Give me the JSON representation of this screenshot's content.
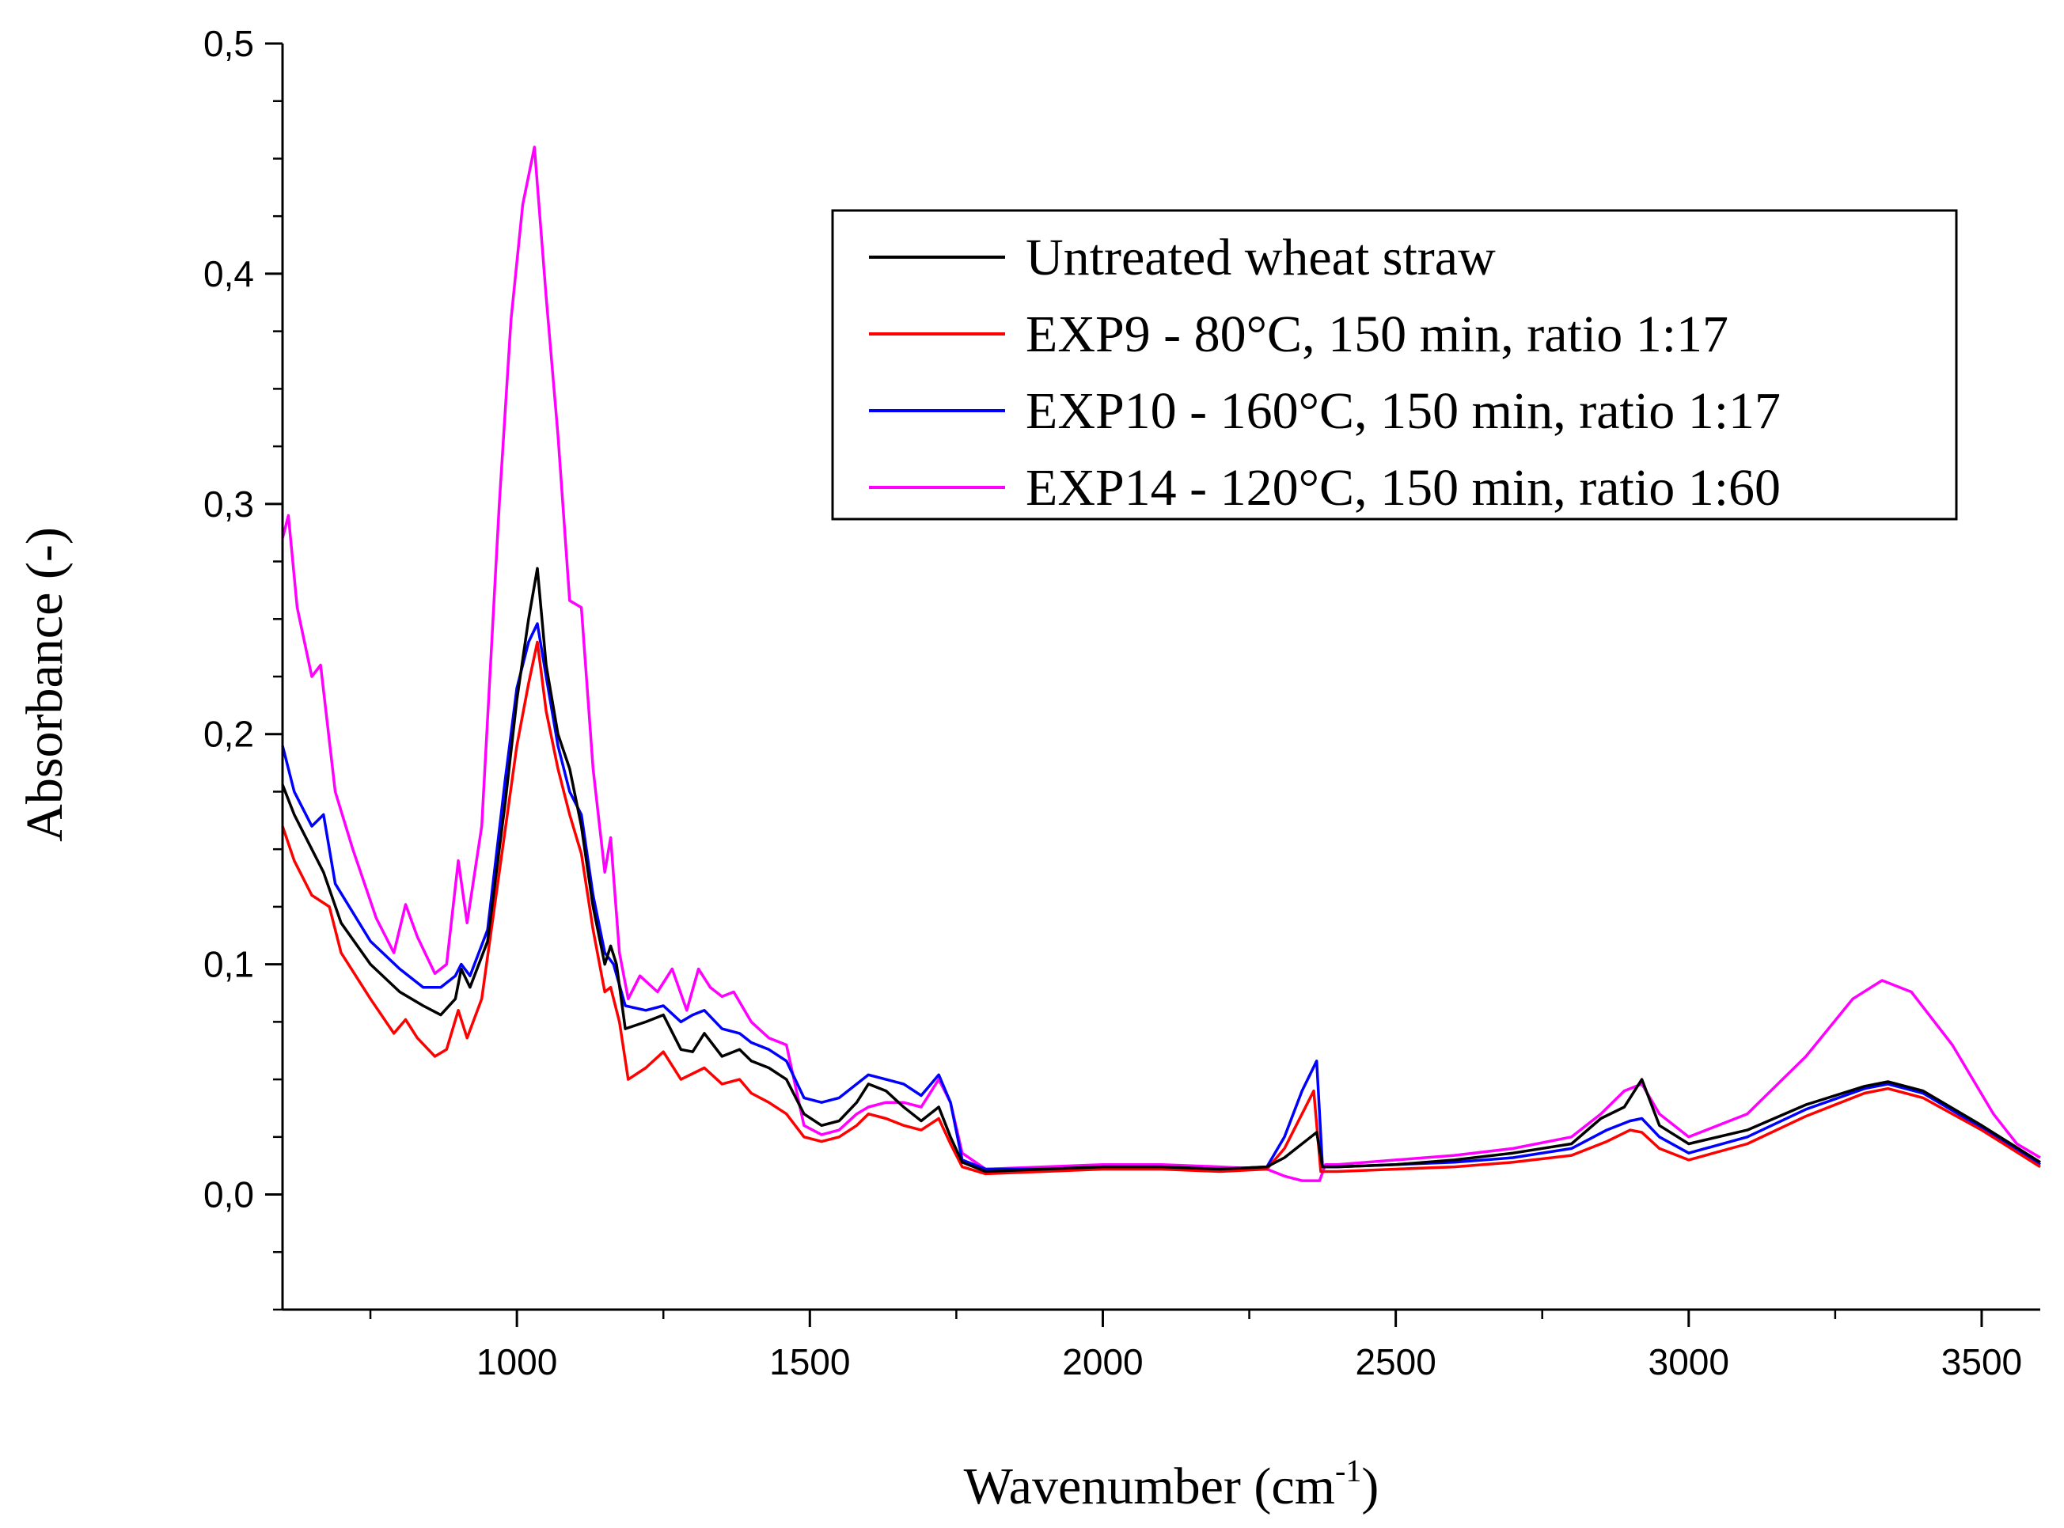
{
  "chart_data": {
    "type": "line",
    "title": "",
    "xlabel": "Wavenumber (cm",
    "xlabel_sup": "-1",
    "xlabel_close": ")",
    "ylabel": "Absorbance (-)",
    "xlim": [
      600,
      3600
    ],
    "ylim": [
      -0.05,
      0.5
    ],
    "xticks": [
      1000,
      1500,
      2000,
      2500,
      3000,
      3500
    ],
    "xtick_labels": [
      "1000",
      "1500",
      "2000",
      "2500",
      "3000",
      "3500"
    ],
    "yticks": [
      0.0,
      0.1,
      0.2,
      0.3,
      0.4,
      0.5
    ],
    "ytick_labels": [
      "0,0",
      "0,1",
      "0,2",
      "0,3",
      "0,4",
      "0,5"
    ],
    "legend_position": "top-right",
    "series": [
      {
        "name": "Untreated wheat straw",
        "color": "#000000",
        "points": [
          [
            600,
            0.178
          ],
          [
            620,
            0.165
          ],
          [
            650,
            0.15
          ],
          [
            670,
            0.14
          ],
          [
            700,
            0.118
          ],
          [
            750,
            0.1
          ],
          [
            800,
            0.088
          ],
          [
            840,
            0.082
          ],
          [
            870,
            0.078
          ],
          [
            895,
            0.085
          ],
          [
            905,
            0.098
          ],
          [
            920,
            0.09
          ],
          [
            950,
            0.11
          ],
          [
            980,
            0.17
          ],
          [
            1000,
            0.215
          ],
          [
            1020,
            0.25
          ],
          [
            1035,
            0.272
          ],
          [
            1050,
            0.23
          ],
          [
            1070,
            0.2
          ],
          [
            1090,
            0.185
          ],
          [
            1110,
            0.16
          ],
          [
            1130,
            0.125
          ],
          [
            1150,
            0.1
          ],
          [
            1160,
            0.108
          ],
          [
            1170,
            0.1
          ],
          [
            1185,
            0.072
          ],
          [
            1220,
            0.075
          ],
          [
            1250,
            0.078
          ],
          [
            1280,
            0.063
          ],
          [
            1300,
            0.062
          ],
          [
            1320,
            0.07
          ],
          [
            1350,
            0.06
          ],
          [
            1380,
            0.063
          ],
          [
            1400,
            0.058
          ],
          [
            1430,
            0.055
          ],
          [
            1460,
            0.05
          ],
          [
            1490,
            0.035
          ],
          [
            1520,
            0.03
          ],
          [
            1550,
            0.032
          ],
          [
            1580,
            0.04
          ],
          [
            1600,
            0.048
          ],
          [
            1630,
            0.045
          ],
          [
            1660,
            0.038
          ],
          [
            1690,
            0.032
          ],
          [
            1720,
            0.038
          ],
          [
            1740,
            0.025
          ],
          [
            1760,
            0.014
          ],
          [
            1800,
            0.01
          ],
          [
            1900,
            0.011
          ],
          [
            2000,
            0.012
          ],
          [
            2100,
            0.012
          ],
          [
            2200,
            0.011
          ],
          [
            2280,
            0.012
          ],
          [
            2310,
            0.016
          ],
          [
            2340,
            0.022
          ],
          [
            2365,
            0.027
          ],
          [
            2375,
            0.012
          ],
          [
            2400,
            0.012
          ],
          [
            2500,
            0.013
          ],
          [
            2600,
            0.015
          ],
          [
            2700,
            0.018
          ],
          [
            2800,
            0.022
          ],
          [
            2850,
            0.033
          ],
          [
            2890,
            0.038
          ],
          [
            2920,
            0.05
          ],
          [
            2950,
            0.03
          ],
          [
            3000,
            0.022
          ],
          [
            3100,
            0.028
          ],
          [
            3200,
            0.039
          ],
          [
            3300,
            0.047
          ],
          [
            3340,
            0.049
          ],
          [
            3400,
            0.045
          ],
          [
            3500,
            0.03
          ],
          [
            3600,
            0.014
          ]
        ]
      },
      {
        "name": "EXP9 - 80°C, 150 min, ratio 1:17",
        "color": "#ff0000",
        "points": [
          [
            600,
            0.16
          ],
          [
            620,
            0.145
          ],
          [
            650,
            0.13
          ],
          [
            680,
            0.125
          ],
          [
            700,
            0.105
          ],
          [
            750,
            0.085
          ],
          [
            790,
            0.07
          ],
          [
            810,
            0.076
          ],
          [
            830,
            0.068
          ],
          [
            860,
            0.06
          ],
          [
            880,
            0.063
          ],
          [
            900,
            0.08
          ],
          [
            915,
            0.068
          ],
          [
            940,
            0.085
          ],
          [
            970,
            0.14
          ],
          [
            1000,
            0.195
          ],
          [
            1020,
            0.222
          ],
          [
            1035,
            0.24
          ],
          [
            1050,
            0.21
          ],
          [
            1070,
            0.185
          ],
          [
            1090,
            0.165
          ],
          [
            1110,
            0.148
          ],
          [
            1130,
            0.115
          ],
          [
            1150,
            0.088
          ],
          [
            1160,
            0.09
          ],
          [
            1175,
            0.075
          ],
          [
            1190,
            0.05
          ],
          [
            1220,
            0.055
          ],
          [
            1250,
            0.062
          ],
          [
            1280,
            0.05
          ],
          [
            1320,
            0.055
          ],
          [
            1350,
            0.048
          ],
          [
            1380,
            0.05
          ],
          [
            1400,
            0.044
          ],
          [
            1430,
            0.04
          ],
          [
            1460,
            0.035
          ],
          [
            1490,
            0.025
          ],
          [
            1520,
            0.023
          ],
          [
            1550,
            0.025
          ],
          [
            1580,
            0.03
          ],
          [
            1600,
            0.035
          ],
          [
            1630,
            0.033
          ],
          [
            1660,
            0.03
          ],
          [
            1690,
            0.028
          ],
          [
            1720,
            0.033
          ],
          [
            1740,
            0.022
          ],
          [
            1760,
            0.012
          ],
          [
            1800,
            0.009
          ],
          [
            1900,
            0.01
          ],
          [
            2000,
            0.011
          ],
          [
            2100,
            0.011
          ],
          [
            2200,
            0.01
          ],
          [
            2280,
            0.011
          ],
          [
            2310,
            0.02
          ],
          [
            2340,
            0.035
          ],
          [
            2360,
            0.045
          ],
          [
            2372,
            0.01
          ],
          [
            2400,
            0.01
          ],
          [
            2500,
            0.011
          ],
          [
            2600,
            0.012
          ],
          [
            2700,
            0.014
          ],
          [
            2800,
            0.017
          ],
          [
            2860,
            0.023
          ],
          [
            2900,
            0.028
          ],
          [
            2920,
            0.027
          ],
          [
            2950,
            0.02
          ],
          [
            3000,
            0.015
          ],
          [
            3100,
            0.022
          ],
          [
            3200,
            0.034
          ],
          [
            3300,
            0.044
          ],
          [
            3340,
            0.046
          ],
          [
            3400,
            0.042
          ],
          [
            3500,
            0.028
          ],
          [
            3600,
            0.012
          ]
        ]
      },
      {
        "name": "EXP10 - 160°C, 150 min, ratio 1:17",
        "color": "#0000ff",
        "points": [
          [
            600,
            0.195
          ],
          [
            620,
            0.175
          ],
          [
            650,
            0.16
          ],
          [
            670,
            0.165
          ],
          [
            690,
            0.135
          ],
          [
            750,
            0.11
          ],
          [
            800,
            0.098
          ],
          [
            840,
            0.09
          ],
          [
            870,
            0.09
          ],
          [
            895,
            0.095
          ],
          [
            905,
            0.1
          ],
          [
            920,
            0.095
          ],
          [
            950,
            0.115
          ],
          [
            980,
            0.18
          ],
          [
            1000,
            0.22
          ],
          [
            1020,
            0.24
          ],
          [
            1035,
            0.248
          ],
          [
            1050,
            0.225
          ],
          [
            1070,
            0.195
          ],
          [
            1090,
            0.175
          ],
          [
            1110,
            0.165
          ],
          [
            1130,
            0.13
          ],
          [
            1150,
            0.105
          ],
          [
            1165,
            0.1
          ],
          [
            1185,
            0.082
          ],
          [
            1220,
            0.08
          ],
          [
            1250,
            0.082
          ],
          [
            1280,
            0.075
          ],
          [
            1300,
            0.078
          ],
          [
            1320,
            0.08
          ],
          [
            1350,
            0.072
          ],
          [
            1380,
            0.07
          ],
          [
            1400,
            0.066
          ],
          [
            1430,
            0.063
          ],
          [
            1460,
            0.058
          ],
          [
            1490,
            0.042
          ],
          [
            1520,
            0.04
          ],
          [
            1550,
            0.042
          ],
          [
            1580,
            0.048
          ],
          [
            1600,
            0.052
          ],
          [
            1630,
            0.05
          ],
          [
            1660,
            0.048
          ],
          [
            1690,
            0.043
          ],
          [
            1720,
            0.052
          ],
          [
            1740,
            0.04
          ],
          [
            1760,
            0.015
          ],
          [
            1800,
            0.011
          ],
          [
            1900,
            0.011
          ],
          [
            2000,
            0.012
          ],
          [
            2100,
            0.012
          ],
          [
            2200,
            0.011
          ],
          [
            2280,
            0.012
          ],
          [
            2310,
            0.025
          ],
          [
            2340,
            0.045
          ],
          [
            2365,
            0.058
          ],
          [
            2375,
            0.012
          ],
          [
            2400,
            0.012
          ],
          [
            2500,
            0.013
          ],
          [
            2600,
            0.014
          ],
          [
            2700,
            0.016
          ],
          [
            2800,
            0.02
          ],
          [
            2860,
            0.028
          ],
          [
            2900,
            0.032
          ],
          [
            2920,
            0.033
          ],
          [
            2950,
            0.025
          ],
          [
            3000,
            0.018
          ],
          [
            3100,
            0.025
          ],
          [
            3200,
            0.037
          ],
          [
            3300,
            0.046
          ],
          [
            3340,
            0.048
          ],
          [
            3400,
            0.044
          ],
          [
            3500,
            0.029
          ],
          [
            3600,
            0.013
          ]
        ]
      },
      {
        "name": "EXP14 - 120°C, 150 min, ratio 1:60",
        "color": "#ff00ff",
        "points": [
          [
            600,
            0.285
          ],
          [
            610,
            0.295
          ],
          [
            625,
            0.255
          ],
          [
            650,
            0.225
          ],
          [
            665,
            0.23
          ],
          [
            690,
            0.175
          ],
          [
            720,
            0.15
          ],
          [
            760,
            0.12
          ],
          [
            790,
            0.105
          ],
          [
            810,
            0.126
          ],
          [
            830,
            0.112
          ],
          [
            860,
            0.096
          ],
          [
            880,
            0.1
          ],
          [
            900,
            0.145
          ],
          [
            915,
            0.118
          ],
          [
            940,
            0.16
          ],
          [
            970,
            0.3
          ],
          [
            990,
            0.38
          ],
          [
            1010,
            0.43
          ],
          [
            1030,
            0.455
          ],
          [
            1050,
            0.39
          ],
          [
            1070,
            0.33
          ],
          [
            1090,
            0.258
          ],
          [
            1110,
            0.255
          ],
          [
            1130,
            0.185
          ],
          [
            1150,
            0.14
          ],
          [
            1160,
            0.155
          ],
          [
            1175,
            0.105
          ],
          [
            1190,
            0.085
          ],
          [
            1210,
            0.095
          ],
          [
            1240,
            0.088
          ],
          [
            1265,
            0.098
          ],
          [
            1290,
            0.08
          ],
          [
            1310,
            0.098
          ],
          [
            1330,
            0.09
          ],
          [
            1350,
            0.086
          ],
          [
            1370,
            0.088
          ],
          [
            1400,
            0.075
          ],
          [
            1430,
            0.068
          ],
          [
            1460,
            0.065
          ],
          [
            1490,
            0.03
          ],
          [
            1520,
            0.026
          ],
          [
            1550,
            0.028
          ],
          [
            1580,
            0.035
          ],
          [
            1600,
            0.038
          ],
          [
            1630,
            0.04
          ],
          [
            1660,
            0.04
          ],
          [
            1690,
            0.038
          ],
          [
            1720,
            0.05
          ],
          [
            1740,
            0.04
          ],
          [
            1760,
            0.018
          ],
          [
            1800,
            0.011
          ],
          [
            1900,
            0.012
          ],
          [
            2000,
            0.013
          ],
          [
            2100,
            0.013
          ],
          [
            2200,
            0.012
          ],
          [
            2280,
            0.011
          ],
          [
            2310,
            0.008
          ],
          [
            2340,
            0.006
          ],
          [
            2370,
            0.006
          ],
          [
            2380,
            0.013
          ],
          [
            2400,
            0.013
          ],
          [
            2500,
            0.015
          ],
          [
            2600,
            0.017
          ],
          [
            2700,
            0.02
          ],
          [
            2800,
            0.025
          ],
          [
            2850,
            0.035
          ],
          [
            2890,
            0.045
          ],
          [
            2920,
            0.048
          ],
          [
            2950,
            0.035
          ],
          [
            3000,
            0.025
          ],
          [
            3100,
            0.035
          ],
          [
            3200,
            0.06
          ],
          [
            3280,
            0.085
          ],
          [
            3330,
            0.093
          ],
          [
            3380,
            0.088
          ],
          [
            3450,
            0.065
          ],
          [
            3520,
            0.035
          ],
          [
            3560,
            0.022
          ],
          [
            3600,
            0.016
          ]
        ]
      }
    ]
  }
}
